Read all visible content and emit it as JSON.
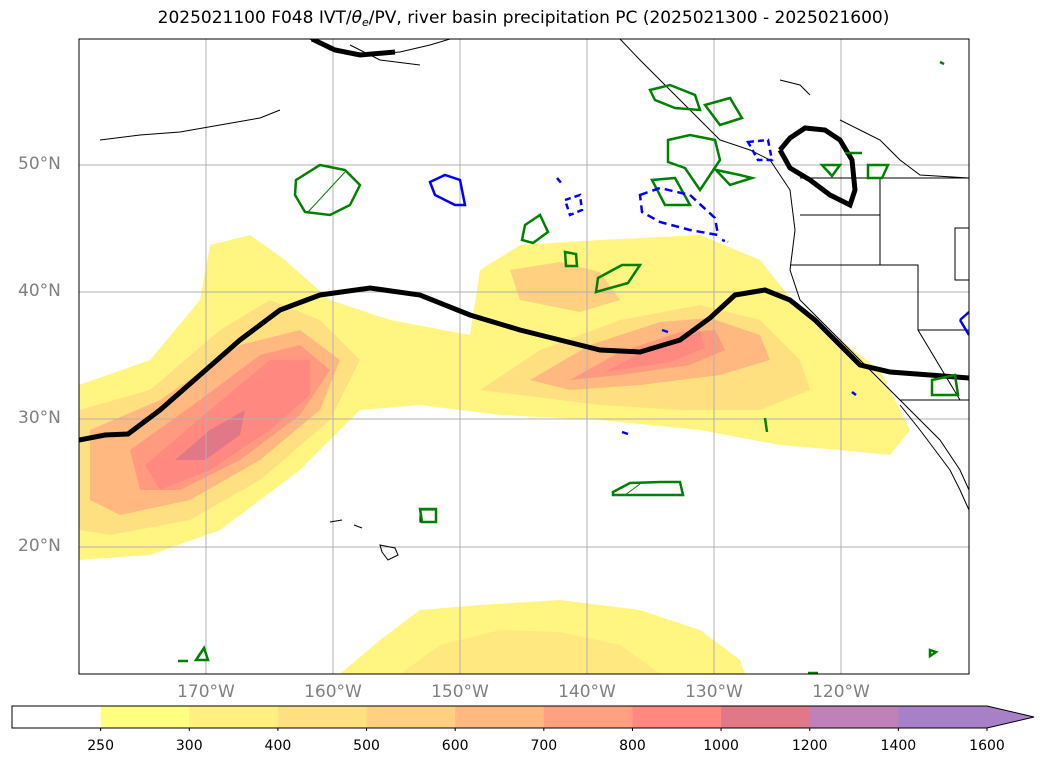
{
  "title": {
    "prefix": "2025021100 F048 IVT/",
    "theta": "θ",
    "theta_sub": "e",
    "suffix": "/PV, river basin precipitation PC (2025021300 - 2025021600)"
  },
  "map": {
    "lat_labels": [
      "50°N",
      "40°N",
      "30°N",
      "20°N"
    ],
    "lon_labels": [
      "170°W",
      "160°W",
      "150°W",
      "140°W",
      "130°W",
      "120°W"
    ],
    "colors": {
      "pv_contour": "#000000",
      "precip_positive": "#008000",
      "precip_negative": "#0000ff",
      "coastline": "#000000",
      "grid": "#b0b0b0"
    }
  },
  "colorbar": {
    "levels": [
      "250",
      "300",
      "400",
      "500",
      "600",
      "700",
      "800",
      "1000",
      "1200",
      "1400",
      "1600"
    ],
    "colors": [
      "#ffffff",
      "#ffff80",
      "#fff080",
      "#ffe080",
      "#ffd080",
      "#ffb880",
      "#ffa080",
      "#ff8880",
      "#e07888",
      "#c080b8",
      "#a880c8"
    ],
    "extend": "max"
  }
}
